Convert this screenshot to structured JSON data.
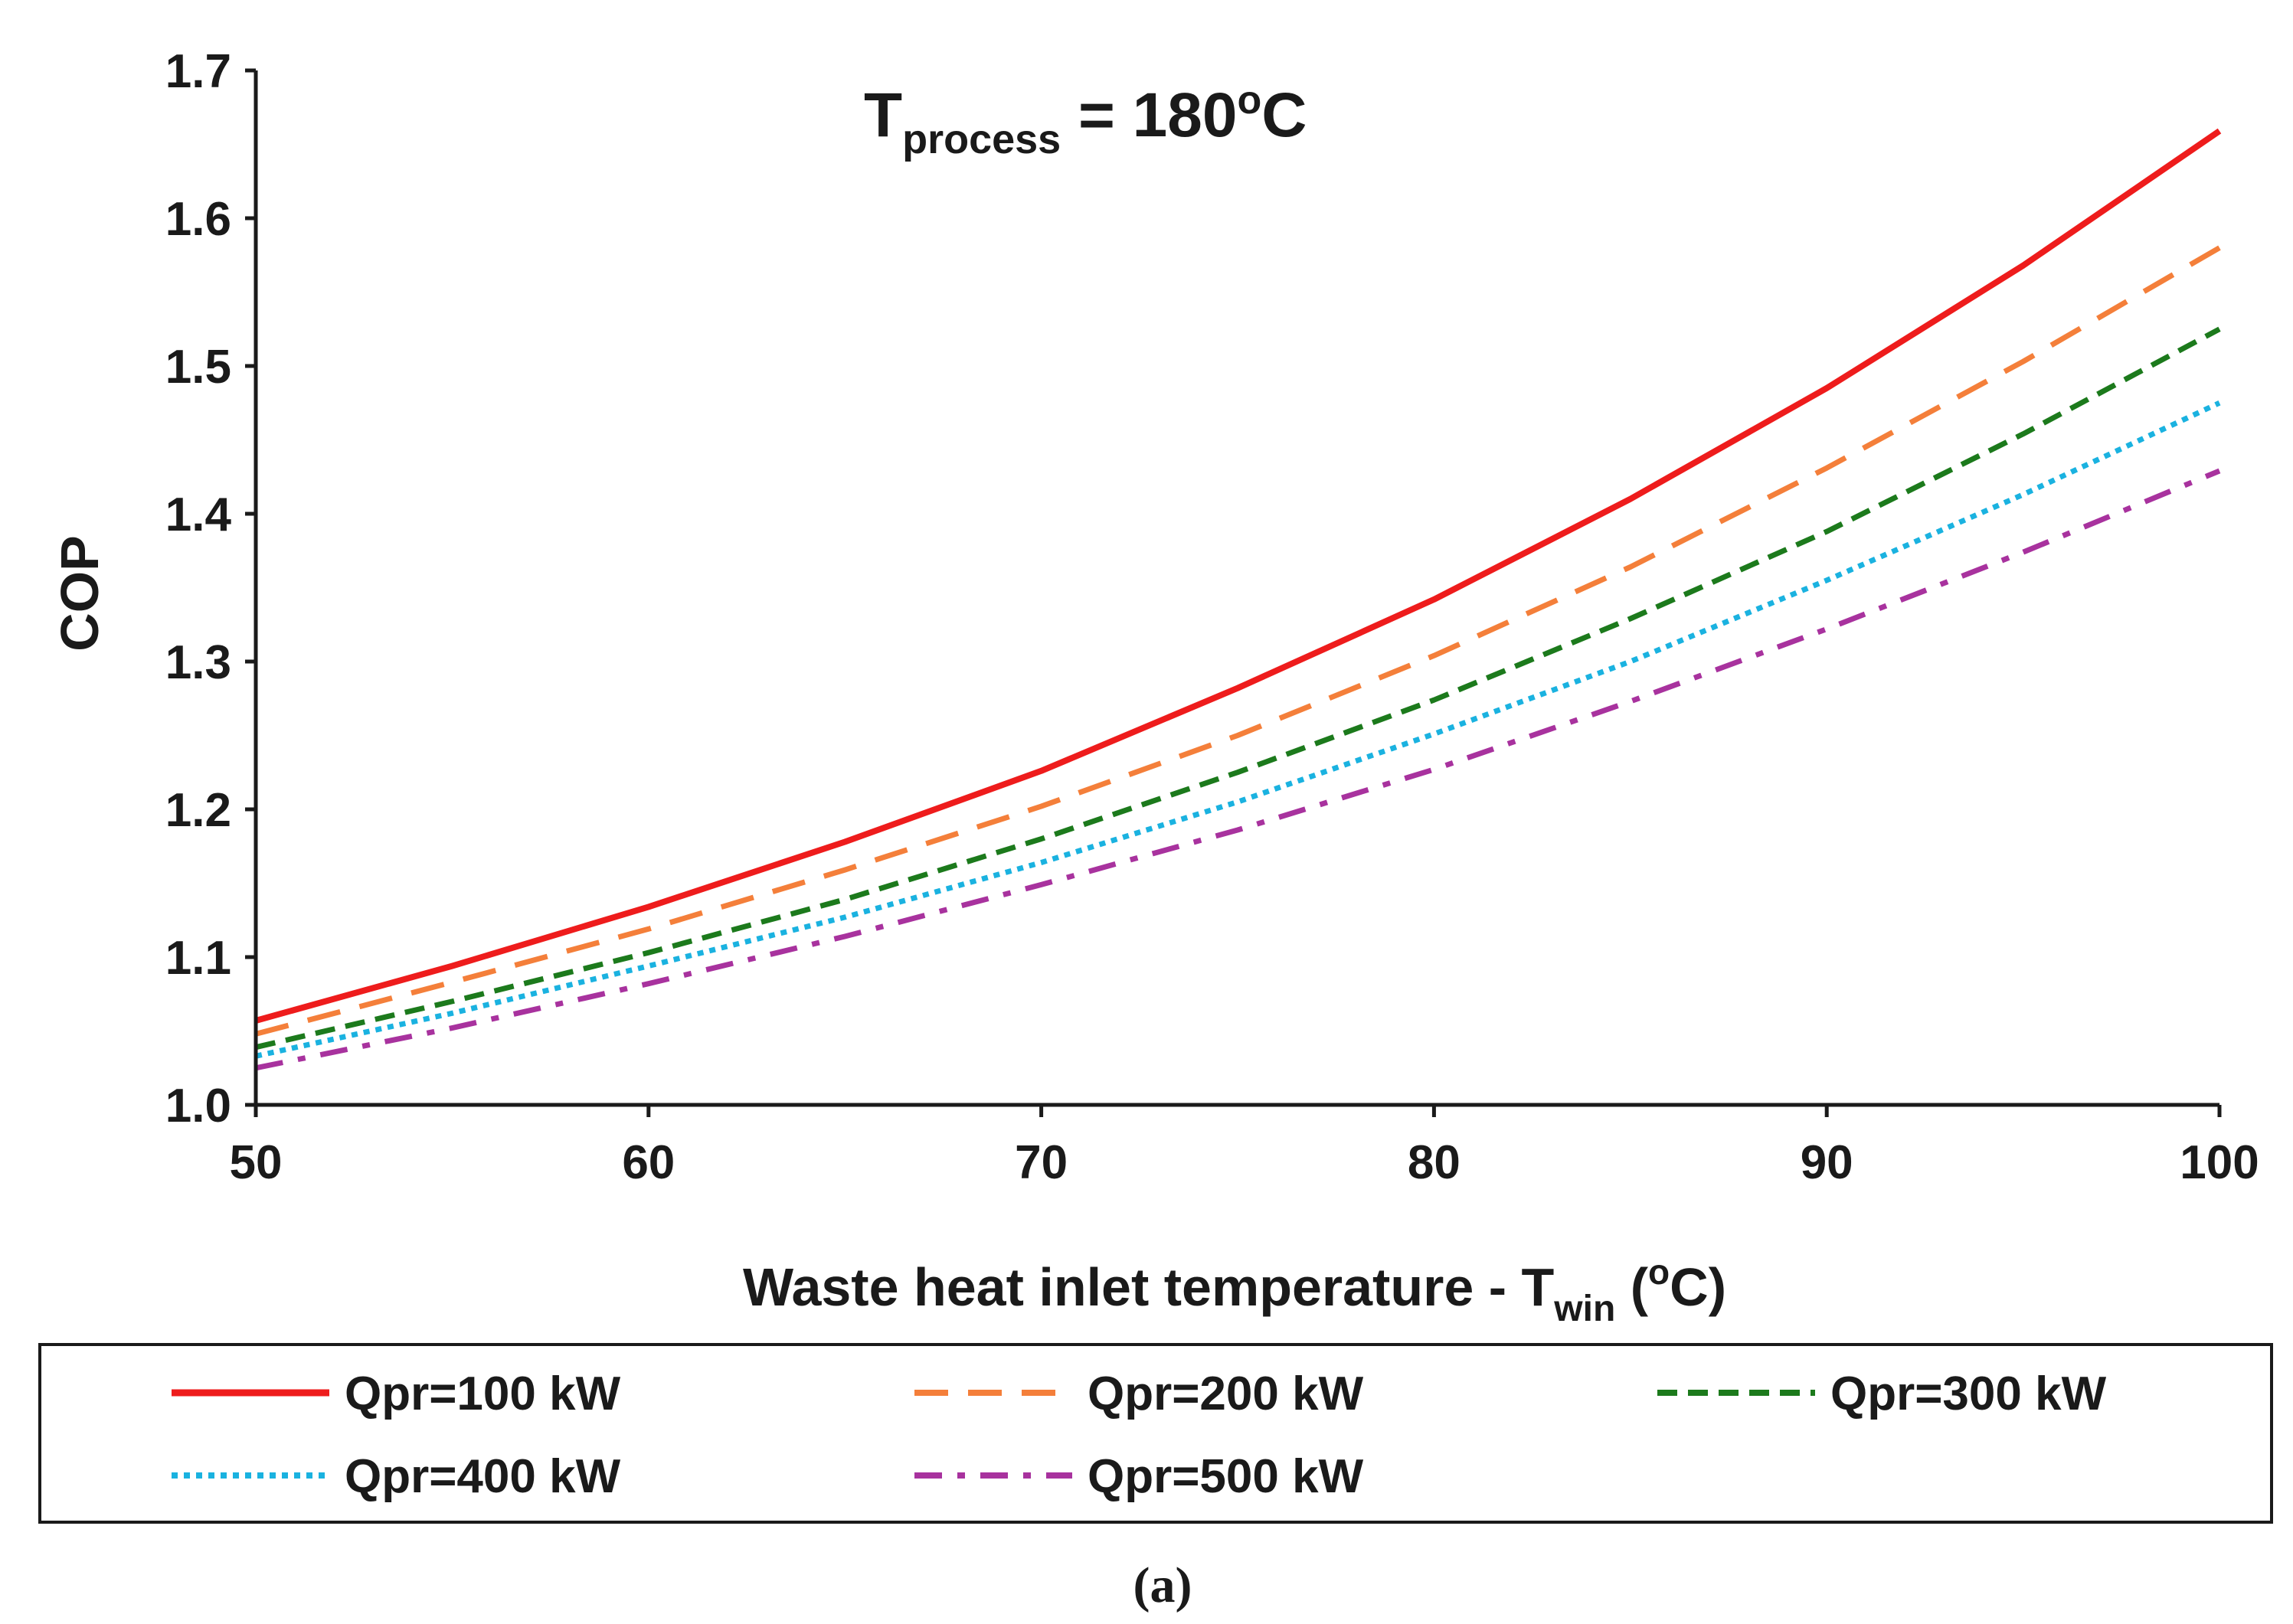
{
  "chart_data": {
    "type": "line",
    "title": {
      "prefix": "T",
      "subscript": "process",
      "suffix": " = 180",
      "superscript": "o",
      "unit": "C"
    },
    "xlabel": {
      "main": "Waste heat inlet temperature - T",
      "subscript": "win",
      "open": " (",
      "superscript": "o",
      "close": "C)"
    },
    "ylabel": "COP",
    "xlim": [
      50,
      100
    ],
    "ylim": [
      1.0,
      1.7
    ],
    "x_ticks": [
      "50",
      "60",
      "70",
      "80",
      "90",
      "100"
    ],
    "y_ticks": [
      "1.0",
      "1.1",
      "1.2",
      "1.3",
      "1.4",
      "1.5",
      "1.6",
      "1.7"
    ],
    "grid": false,
    "legend_position": "bottom",
    "x": [
      50,
      55,
      60,
      65,
      70,
      75,
      80,
      85,
      90,
      95,
      100
    ],
    "series": [
      {
        "name": "Qpr=100 kW",
        "color": "#ee1c1c",
        "style": "solid",
        "values": [
          1.057,
          1.094,
          1.134,
          1.178,
          1.226,
          1.282,
          1.342,
          1.41,
          1.485,
          1.568,
          1.659
        ]
      },
      {
        "name": "Qpr=200 kW",
        "color": "#f47f3a",
        "style": "dashed",
        "values": [
          1.048,
          1.083,
          1.119,
          1.159,
          1.202,
          1.25,
          1.304,
          1.364,
          1.431,
          1.503,
          1.58
        ]
      },
      {
        "name": "Qpr=300 kW",
        "color": "#1c7a1c",
        "style": "short-dashed",
        "values": [
          1.039,
          1.07,
          1.103,
          1.139,
          1.18,
          1.225,
          1.274,
          1.329,
          1.388,
          1.454,
          1.525
        ]
      },
      {
        "name": "Qpr=400 kW",
        "color": "#1ab2e0",
        "style": "dotted",
        "values": [
          1.033,
          1.062,
          1.094,
          1.127,
          1.164,
          1.205,
          1.251,
          1.3,
          1.355,
          1.413,
          1.475
        ]
      },
      {
        "name": "Qpr=500 kW",
        "color": "#a8329e",
        "style": "dash-dot",
        "values": [
          1.025,
          1.052,
          1.082,
          1.114,
          1.149,
          1.186,
          1.227,
          1.273,
          1.322,
          1.374,
          1.429
        ]
      }
    ]
  },
  "caption": "(a)"
}
